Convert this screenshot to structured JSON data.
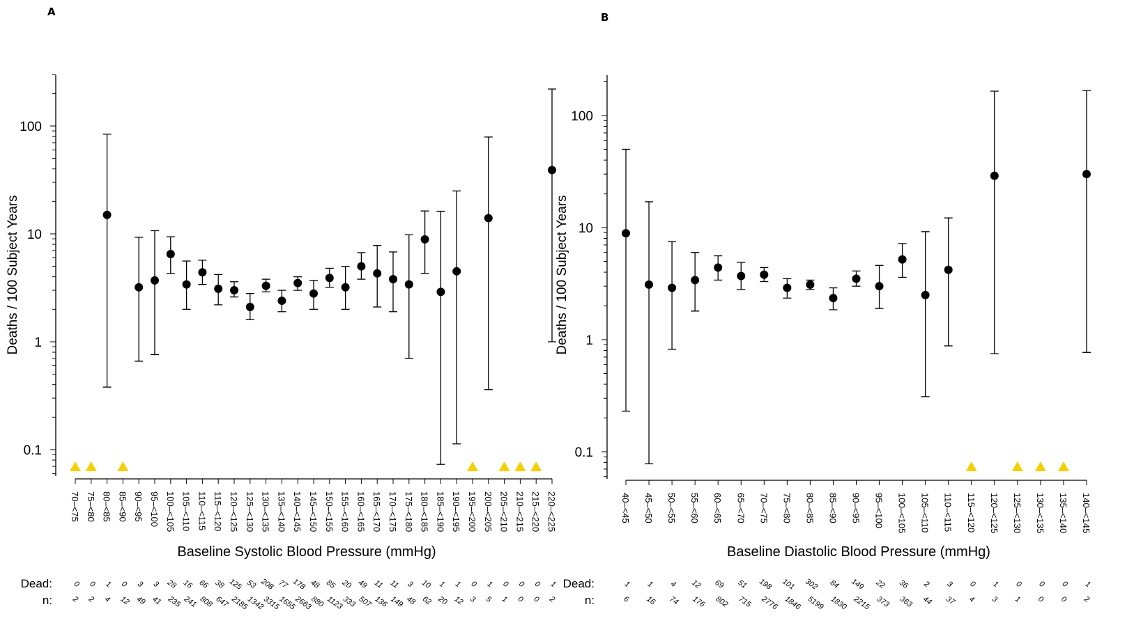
{
  "chart_data": [
    {
      "panel": "A",
      "type": "scatter",
      "subtype": "point estimates with confidence intervals",
      "xlabel": "Baseline Systolic Blood Pressure (mmHg)",
      "ylabel": "Deaths / 100 Subject Years",
      "yscale": "log",
      "ylim": [
        0.06,
        300
      ],
      "yticks": [
        "0.1",
        "1",
        "10",
        "100"
      ],
      "grid": false,
      "marker_color": "#000000",
      "zero_marker_color": "#f5d000",
      "categories": [
        "70–<75",
        "75–<80",
        "80–<85",
        "85–<90",
        "90–<95",
        "95–<100",
        "100–<105",
        "105–<110",
        "110–<115",
        "115–<120",
        "120–<125",
        "125–<130",
        "130–<135",
        "135–<140",
        "140–<145",
        "145–<150",
        "150–<155",
        "155–<160",
        "160–<165",
        "165–<170",
        "170–<175",
        "175–<180",
        "180–<185",
        "185–<190",
        "190–<195",
        "195–<200",
        "200–<205",
        "205–<210",
        "210–<215",
        "215–<220",
        "220–<225"
      ],
      "rate": [
        null,
        null,
        15,
        null,
        3.2,
        3.7,
        6.5,
        3.4,
        4.4,
        3.1,
        3.0,
        2.1,
        3.3,
        2.4,
        3.5,
        2.8,
        3.9,
        3.2,
        5.0,
        4.3,
        3.8,
        3.4,
        8.9,
        2.9,
        4.5,
        null,
        14,
        null,
        null,
        null,
        39
      ],
      "ci_low": [
        null,
        null,
        0.38,
        null,
        0.66,
        0.76,
        4.3,
        2.0,
        3.4,
        2.2,
        2.6,
        1.6,
        2.9,
        1.9,
        3.0,
        2.0,
        3.2,
        2.0,
        3.8,
        2.1,
        1.9,
        0.7,
        4.3,
        0.073,
        0.113,
        null,
        0.36,
        null,
        null,
        null,
        1.0
      ],
      "ci_high": [
        null,
        null,
        84,
        null,
        9.3,
        10.7,
        9.4,
        5.6,
        5.7,
        4.2,
        3.6,
        2.8,
        3.8,
        3.0,
        4.0,
        3.7,
        4.8,
        5.0,
        6.7,
        7.8,
        6.8,
        9.8,
        16.3,
        16.2,
        25,
        null,
        79,
        null,
        null,
        null,
        220
      ],
      "zero_death_flags": [
        true,
        true,
        false,
        true,
        false,
        false,
        false,
        false,
        false,
        false,
        false,
        false,
        false,
        false,
        false,
        false,
        false,
        false,
        false,
        false,
        false,
        false,
        false,
        false,
        false,
        true,
        false,
        true,
        true,
        true,
        false
      ],
      "table": {
        "dead_label": "Dead:",
        "n_label": "n:",
        "dead": [
          "0",
          "0",
          "1",
          "0",
          "3",
          "3",
          "28",
          "16",
          "66",
          "38",
          "125",
          "53",
          "208",
          "77",
          "178",
          "48",
          "85",
          "20",
          "49",
          "11",
          "11",
          "3",
          "10",
          "1",
          "1",
          "0",
          "1",
          "0",
          "0",
          "0",
          "1"
        ],
        "n": [
          "2",
          "2",
          "4",
          "12",
          "49",
          "41",
          "235",
          "241",
          "808",
          "647",
          "2185",
          "1342",
          "3315",
          "1655",
          "2663",
          "880",
          "1123",
          "333",
          "507",
          "136",
          "149",
          "48",
          "62",
          "20",
          "12",
          "3",
          "5",
          "1",
          "0",
          "0",
          "2"
        ]
      }
    },
    {
      "panel": "B",
      "type": "scatter",
      "subtype": "point estimates with confidence intervals",
      "xlabel": "Baseline Diastolic Blood Pressure (mmHg)",
      "ylabel": "Deaths / 100 Subject Years",
      "yscale": "log",
      "ylim": [
        0.06,
        200
      ],
      "yticks": [
        "0.1",
        "1",
        "10",
        "100"
      ],
      "grid": false,
      "marker_color": "#000000",
      "zero_marker_color": "#f5d000",
      "categories": [
        "40–<45",
        "45–<50",
        "50–<55",
        "55–<60",
        "60–<65",
        "65–<70",
        "70–<75",
        "75–<80",
        "80–<85",
        "85–<90",
        "90–<95",
        "95–<100",
        "100–<105",
        "105–<110",
        "110–<115",
        "115–<120",
        "120–<125",
        "125–<130",
        "130–<135",
        "135–<140",
        "140–<145"
      ],
      "rate": [
        8.9,
        3.1,
        2.9,
        3.4,
        4.4,
        3.7,
        3.8,
        2.9,
        3.1,
        2.35,
        3.5,
        3.0,
        5.2,
        2.5,
        4.2,
        null,
        29,
        null,
        null,
        null,
        30
      ],
      "ci_low": [
        0.23,
        0.078,
        0.82,
        1.8,
        3.4,
        2.8,
        3.3,
        2.35,
        2.8,
        1.85,
        3.0,
        1.9,
        3.6,
        0.31,
        0.88,
        null,
        0.75,
        null,
        null,
        null,
        0.77
      ],
      "ci_high": [
        50,
        17,
        7.5,
        6.0,
        5.6,
        4.9,
        4.4,
        3.5,
        3.4,
        2.9,
        4.1,
        4.6,
        7.2,
        9.2,
        12.2,
        null,
        165,
        null,
        null,
        null,
        167
      ],
      "zero_death_flags": [
        false,
        false,
        false,
        false,
        false,
        false,
        false,
        false,
        false,
        false,
        false,
        false,
        false,
        false,
        false,
        true,
        false,
        true,
        true,
        true,
        false
      ],
      "table": {
        "dead_label": "Dead:",
        "n_label": "n:",
        "dead": [
          "1",
          "1",
          "4",
          "12",
          "69",
          "51",
          "198",
          "101",
          "302",
          "84",
          "149",
          "22",
          "36",
          "2",
          "3",
          "0",
          "1",
          "0",
          "0",
          "0",
          "1"
        ],
        "n": [
          "6",
          "16",
          "74",
          "176",
          "802",
          "715",
          "2776",
          "1846",
          "5199",
          "1830",
          "2215",
          "373",
          "363",
          "44",
          "37",
          "4",
          "3",
          "1",
          "0",
          "0",
          "2"
        ]
      }
    }
  ],
  "panel_labels": [
    "A",
    "B"
  ]
}
